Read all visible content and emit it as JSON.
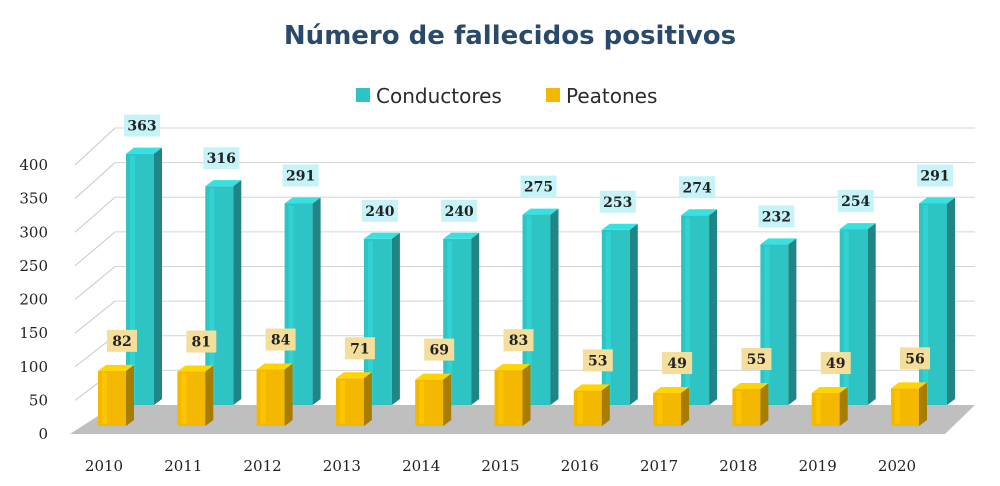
{
  "chart_data": {
    "type": "bar",
    "title": "Número de fallecidos positivos",
    "categories": [
      "2010",
      "2011",
      "2012",
      "2013",
      "2014",
      "2015",
      "2016",
      "2017",
      "2018",
      "2019",
      "2020"
    ],
    "series": [
      {
        "name": "Conductores",
        "color": "#2ec4c4",
        "values": [
          363,
          316,
          291,
          240,
          240,
          275,
          253,
          274,
          232,
          254,
          291
        ]
      },
      {
        "name": "Peatones",
        "color": "#f5b800",
        "values": [
          82,
          81,
          84,
          71,
          69,
          83,
          53,
          49,
          55,
          49,
          56
        ]
      }
    ],
    "y_ticks": [
      "0",
      "50",
      "100",
      "150",
      "200",
      "250",
      "300",
      "350",
      "400"
    ],
    "ylim": [
      0,
      400
    ],
    "legend_position": "top-center",
    "grid": true,
    "style": "3d-cylinder",
    "label_colors": {
      "Conductores": "#c6f3f7",
      "Peatones": "#f4de9c"
    }
  }
}
